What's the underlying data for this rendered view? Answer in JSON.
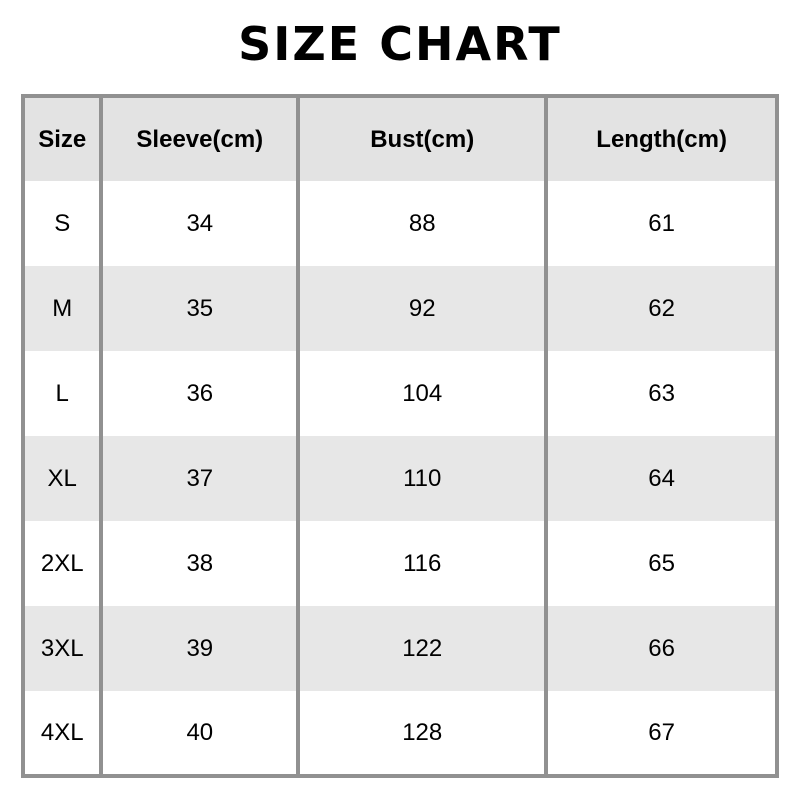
{
  "page_title": "SIZE CHART",
  "chart_data": {
    "type": "table",
    "title": "SIZE CHART",
    "columns": [
      "Size",
      "Sleeve(cm)",
      "Bust(cm)",
      "Length(cm)"
    ],
    "rows": [
      [
        "S",
        "34",
        "88",
        "61"
      ],
      [
        "M",
        "35",
        "92",
        "62"
      ],
      [
        "L",
        "36",
        "104",
        "63"
      ],
      [
        "XL",
        "37",
        "110",
        "64"
      ],
      [
        "2XL",
        "38",
        "116",
        "65"
      ],
      [
        "3XL",
        "39",
        "122",
        "66"
      ],
      [
        "4XL",
        "40",
        "128",
        "67"
      ]
    ]
  },
  "colors": {
    "border": "#919191",
    "header_bg": "#e3e3e3",
    "alt_row_bg": "#e7e7e7",
    "text": "#000000",
    "page_bg": "#ffffff"
  }
}
